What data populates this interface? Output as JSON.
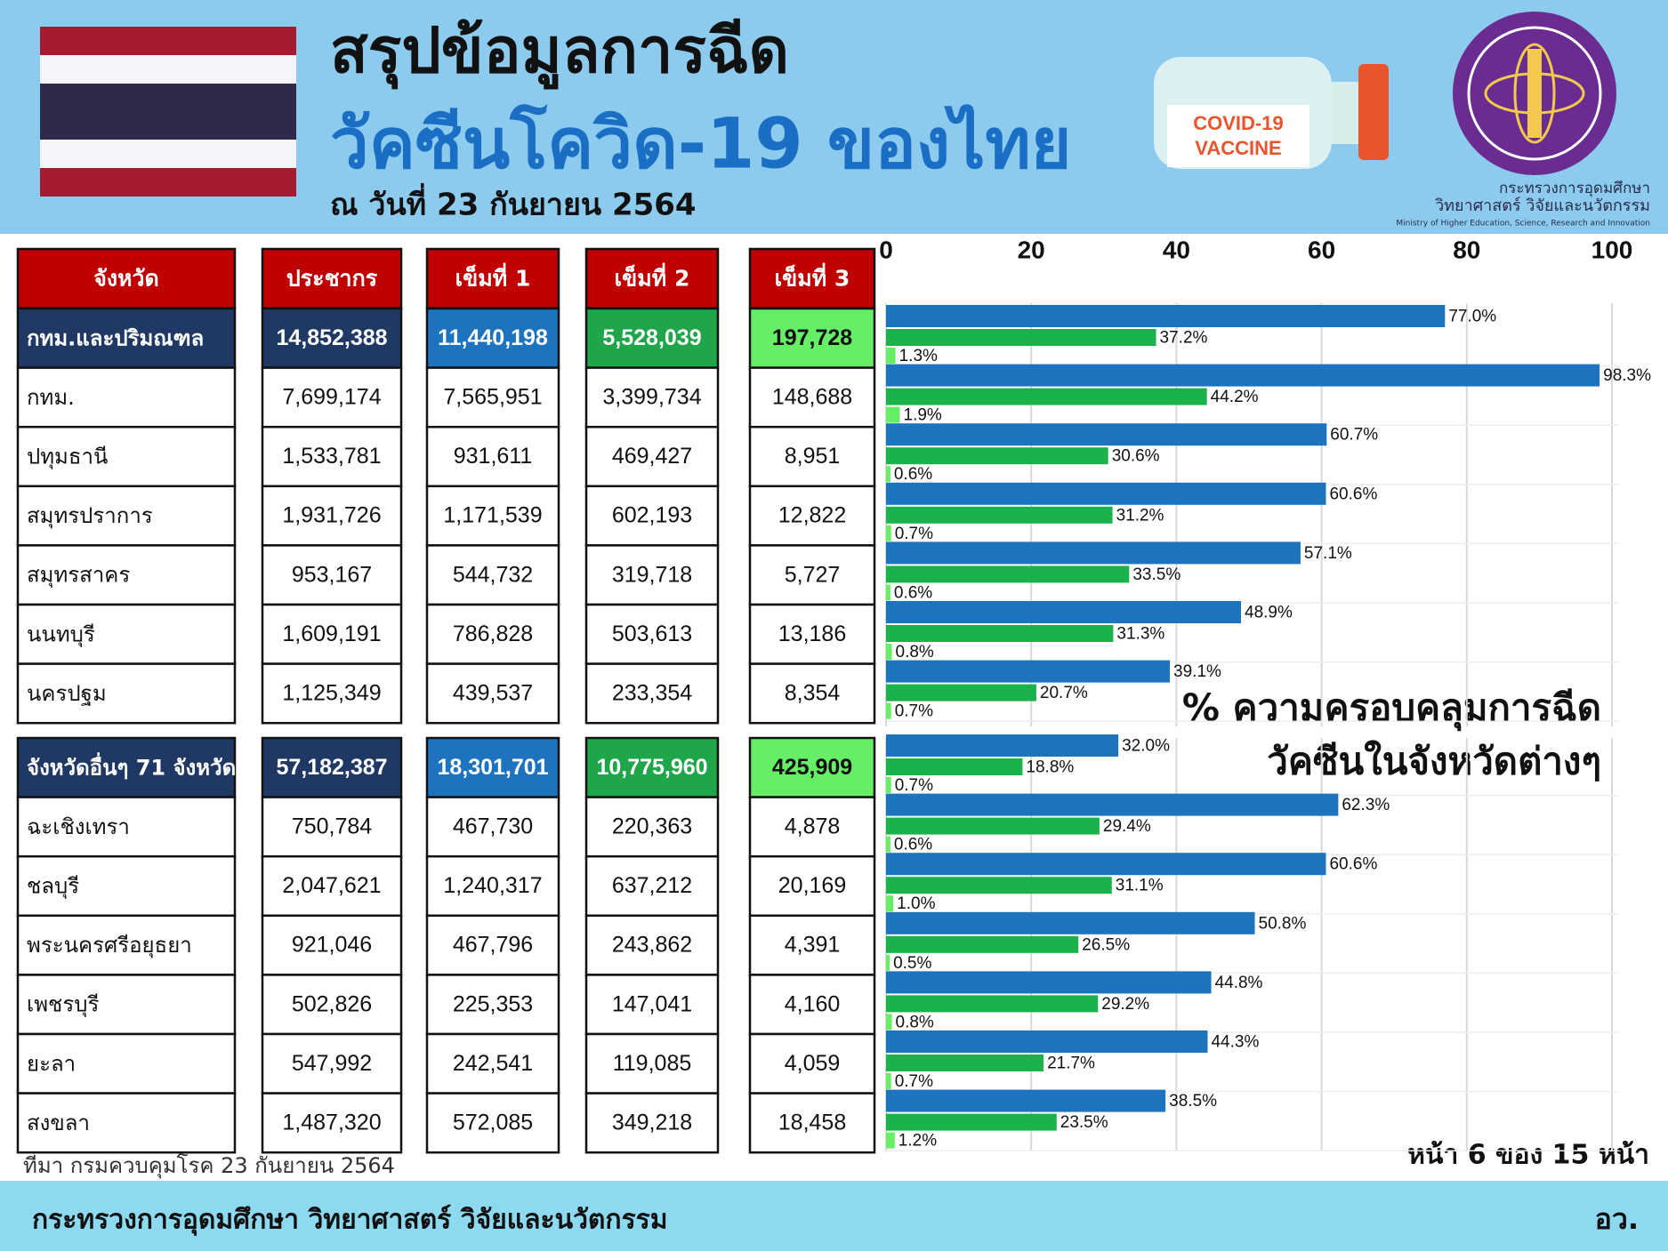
{
  "header": {
    "title": "สรุปข้อมูลการฉีด",
    "subtitle": "วัคซีนโควิด-19 ของไทย",
    "date": "ณ วันที่ 23 กันยายน 2564",
    "vaccine_label": [
      "COVID-19",
      "VACCINE"
    ],
    "ministry": [
      "กระทรวงการอุดมศึกษา",
      "วิทยาศาสตร์ วิจัยและนวัตกรรม",
      "Ministry of Higher Education, Science, Research and Innovation"
    ]
  },
  "table": {
    "header": [
      "จังหวัด",
      "ประชากร",
      "เข็มที่ 1",
      "เข็มที่ 2",
      "เข็มที่ 3"
    ],
    "rows": [
      [
        "กทม.และปริมณฑล",
        "14,852,388",
        "11,440,198",
        "5,528,039",
        "197,728"
      ],
      [
        "กทม.",
        "7,699,174",
        "7,565,951",
        "3,399,734",
        "148,688"
      ],
      [
        "ปทุมธานี",
        "1,533,781",
        "931,611",
        "469,427",
        "8,951"
      ],
      [
        "สมุทรปราการ",
        "1,931,726",
        "1,171,539",
        "602,193",
        "12,822"
      ],
      [
        "สมุทรสาคร",
        "953,167",
        "544,732",
        "319,718",
        "5,727"
      ],
      [
        "นนทบุรี",
        "1,609,191",
        "786,828",
        "503,613",
        "13,186"
      ],
      [
        "นครปฐม",
        "1,125,349",
        "439,537",
        "233,354",
        "8,354"
      ],
      [
        "จังหวัดอื่นๆ 71 จังหวัด",
        "57,182,387",
        "18,301,701",
        "10,775,960",
        "425,909"
      ],
      [
        "ฉะเชิงเทรา",
        "750,784",
        "467,730",
        "220,363",
        "4,878"
      ],
      [
        "ชลบุรี",
        "2,047,621",
        "1,240,317",
        "637,212",
        "20,169"
      ],
      [
        "พระนครศรีอยุธยา",
        "921,046",
        "467,796",
        "243,862",
        "4,391"
      ],
      [
        "เพชรบุรี",
        "502,826",
        "225,353",
        "147,041",
        "4,160"
      ],
      [
        "ยะลา",
        "547,992",
        "242,541",
        "119,085",
        "4,059"
      ],
      [
        "สงขลา",
        "1,487,320",
        "572,085",
        "349,218",
        "18,458"
      ]
    ]
  },
  "chart_data": {
    "type": "bar",
    "title": [
      "% ความครอบคลุมการฉีด",
      "วัคซีนในจังหวัดต่างๆ"
    ],
    "xlim": [
      0,
      100
    ],
    "xticks": [
      0,
      20,
      40,
      60,
      80,
      100
    ],
    "grid": true,
    "series": [
      {
        "color": "#1e73be",
        "values": [
          77.0,
          98.3,
          60.7,
          60.6,
          57.1,
          48.9,
          39.1,
          32.0,
          62.3,
          60.6,
          50.8,
          44.8,
          44.3,
          38.5
        ],
        "value_labels": [
          "77.0%",
          "98.3%",
          "60.7%",
          "60.6%",
          "57.1%",
          "48.9%",
          "39.1%",
          "32.0%",
          "62.3%",
          "60.6%",
          "50.8%",
          "44.8%",
          "44.3%",
          "38.5%"
        ]
      },
      {
        "color": "#1cb24b",
        "values": [
          37.2,
          44.2,
          30.6,
          31.2,
          33.5,
          31.3,
          20.7,
          18.8,
          29.4,
          31.1,
          26.5,
          29.2,
          21.7,
          23.5
        ],
        "value_labels": [
          "37.2%",
          "44.2%",
          "30.6%",
          "31.2%",
          "33.5%",
          "31.3%",
          "20.7%",
          "18.8%",
          "29.4%",
          "31.1%",
          "26.5%",
          "29.2%",
          "21.7%",
          "23.5%"
        ]
      },
      {
        "color": "#66ee66",
        "values": [
          1.3,
          1.9,
          0.6,
          0.7,
          0.6,
          0.8,
          0.7,
          0.7,
          0.6,
          1.0,
          0.5,
          0.8,
          0.7,
          1.2
        ],
        "value_labels": [
          "1.3%",
          "1.9%",
          "0.6%",
          "0.7%",
          "0.6%",
          "0.8%",
          "0.7%",
          "0.7%",
          "0.6%",
          "1.0%",
          "0.5%",
          "0.8%",
          "0.7%",
          "1.2%"
        ]
      }
    ]
  },
  "footer": {
    "source": "ที่มา กรมควบคุมโรค 23 กันยายน 2564",
    "page": "หน้า 6 ของ 15 หน้า",
    "ministry": "กระทรวงการอุดมศึกษา วิทยาศาสตร์ วิจัยและนวัตกรรม",
    "abbr": "อว."
  }
}
